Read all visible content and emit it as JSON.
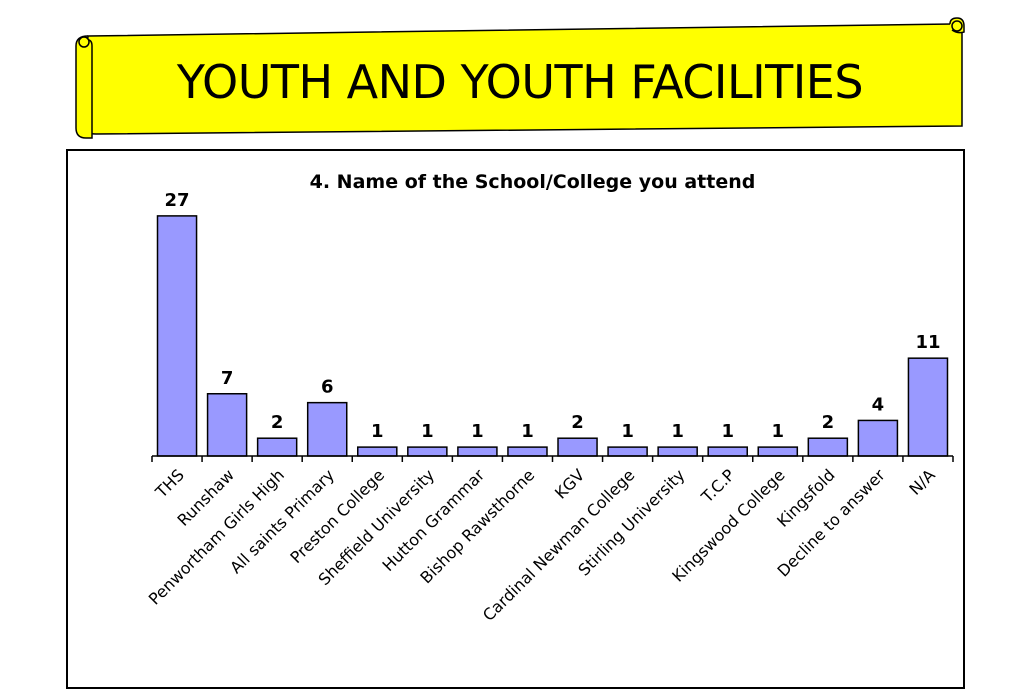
{
  "banner": {
    "title": "YOUTH AND YOUTH FACILITIES",
    "fill_color": "#ffff00"
  },
  "chart_data": {
    "type": "bar",
    "title": "4. Name of the School/College you attend",
    "categories": [
      "THS",
      "Runshaw",
      "Penwortham Girls High",
      "All saints Primary",
      "Preston College",
      "Sheffield University",
      "Hutton Grammar",
      "Bishop Rawsthorne",
      "KGV",
      "Cardinal Newman College",
      "Stirling University",
      "T.C.P",
      "Kingswood College",
      "Kingsfold",
      "Decline to answer",
      "N/A"
    ],
    "values": [
      27,
      7,
      2,
      6,
      1,
      1,
      1,
      1,
      2,
      1,
      1,
      1,
      1,
      2,
      4,
      11
    ],
    "xlabel": "",
    "ylabel": "",
    "ylim": [
      0,
      28
    ],
    "grid": false,
    "data_labels": true,
    "bar_color": "#9999ff"
  }
}
